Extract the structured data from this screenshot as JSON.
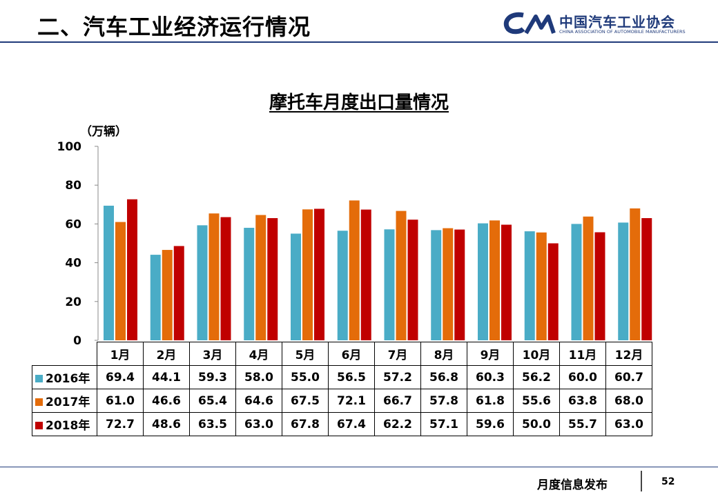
{
  "header": {
    "title": "二、汽车工业经济运行情况"
  },
  "logo": {
    "cn": "中国汽车工业协会",
    "en": "CHINA ASSOCIATION OF AUTOMOBILE MANUFACTURERS"
  },
  "footer": {
    "label": "月度信息发布",
    "page": "52"
  },
  "colors": {
    "2016": "#4aacc6",
    "2017": "#e46c0a",
    "2018": "#c00000",
    "header": "#1f3a7a"
  },
  "chart_data": {
    "type": "bar",
    "title": "摩托车月度出口量情况",
    "unit_label": "（万辆）",
    "xlabel": "",
    "ylabel": "",
    "ylim": [
      0,
      100
    ],
    "yticks": [
      0,
      20,
      40,
      60,
      80,
      100
    ],
    "grid": false,
    "legend": "data-table",
    "categories": [
      "1月",
      "2月",
      "3月",
      "4月",
      "5月",
      "6月",
      "7月",
      "8月",
      "9月",
      "10月",
      "11月",
      "12月"
    ],
    "series": [
      {
        "name": "2016年",
        "color": "#4aacc6",
        "values": [
          "69.4",
          "44.1",
          "59.3",
          "58.0",
          "55.0",
          "56.5",
          "57.2",
          "56.8",
          "60.3",
          "56.2",
          "60.0",
          "60.7"
        ]
      },
      {
        "name": "2017年",
        "color": "#e46c0a",
        "values": [
          "61.0",
          "46.6",
          "65.4",
          "64.6",
          "67.5",
          "72.1",
          "66.7",
          "57.8",
          "61.8",
          "55.6",
          "63.8",
          "68.0"
        ]
      },
      {
        "name": "2018年",
        "color": "#c00000",
        "values": [
          "72.7",
          "48.6",
          "63.5",
          "63.0",
          "67.8",
          "67.4",
          "62.2",
          "57.1",
          "59.6",
          "50.0",
          "55.7",
          "63.0"
        ]
      }
    ]
  }
}
